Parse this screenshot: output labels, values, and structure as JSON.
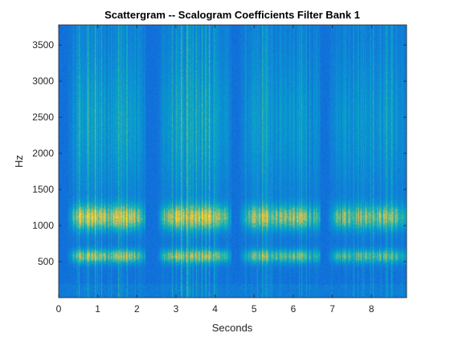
{
  "chart_data": {
    "type": "heatmap",
    "title": "Scattergram -- Scalogram Coefficients Filter Bank 1",
    "xlabel": "Seconds",
    "ylabel": "Hz",
    "xlim": [
      0,
      8.9
    ],
    "ylim": [
      0,
      3780
    ],
    "x_ticks": [
      0,
      1,
      2,
      3,
      4,
      5,
      6,
      7,
      8
    ],
    "y_ticks": [
      500,
      1000,
      1500,
      2000,
      2500,
      3000,
      3500
    ],
    "colormap": "parula",
    "colors": {
      "background": "#2e3fd6",
      "low": "#3d32c8",
      "mid": "#1ea8c9",
      "high": "#e7d64a"
    },
    "grid": false,
    "speech_segments": [
      {
        "start": 0.2,
        "end": 2.2,
        "intensity": 1.0
      },
      {
        "start": 2.5,
        "end": 4.4,
        "intensity": 0.95
      },
      {
        "start": 4.6,
        "end": 6.7,
        "intensity": 0.8
      },
      {
        "start": 6.85,
        "end": 8.9,
        "intensity": 0.78
      }
    ],
    "bands": [
      {
        "center_hz": 580,
        "width_hz": 90,
        "strength": 0.7
      },
      {
        "center_hz": 1120,
        "width_hz": 160,
        "strength": 0.85
      },
      {
        "center_hz": 2400,
        "width_hz": 900,
        "strength": 0.2
      }
    ]
  }
}
